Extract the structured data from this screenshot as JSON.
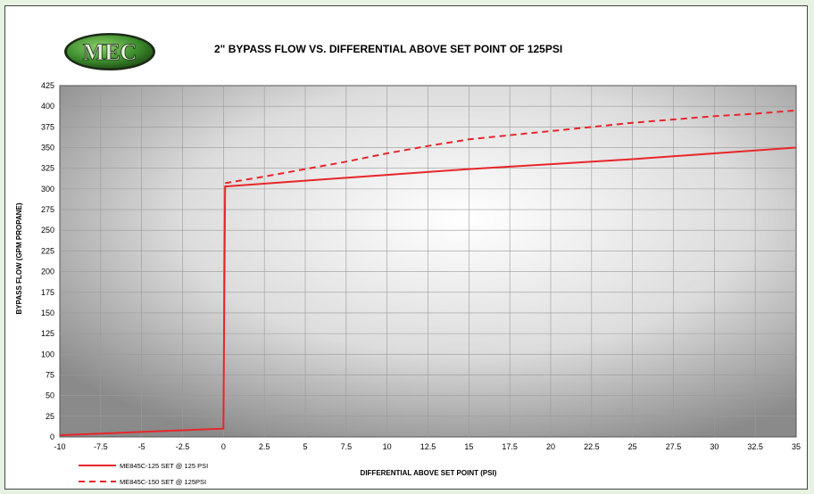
{
  "logo": {
    "text": "MEC"
  },
  "chart_data": {
    "type": "line",
    "title": "2\" BYPASS FLOW VS. DIFFERENTIAL ABOVE SET POINT OF 125PSI",
    "xlabel": "DIFFERENTIAL ABOVE SET POINT (PSI)",
    "ylabel": "BYPASS FLOW (GPM PROPANE)",
    "xlim": [
      -10,
      35
    ],
    "ylim": [
      0,
      425
    ],
    "x_ticks": [
      "-10",
      "-7.5",
      "-5",
      "-2.5",
      "0",
      "2.5",
      "5",
      "7.5",
      "10",
      "12.5",
      "15",
      "17.5",
      "20",
      "22.5",
      "25",
      "27.5",
      "30",
      "32.5",
      "35"
    ],
    "y_ticks": [
      "0",
      "25",
      "50",
      "75",
      "100",
      "125",
      "150",
      "175",
      "200",
      "225",
      "250",
      "275",
      "300",
      "325",
      "350",
      "375",
      "400",
      "425"
    ],
    "grid": true,
    "legend_position": "bottom-left",
    "series": [
      {
        "name": "ME845C-125 SET @ 125 PSI",
        "style": "solid",
        "color": "#e8262a",
        "points": [
          [
            -10,
            2
          ],
          [
            -0.1,
            10
          ],
          [
            0,
            10
          ],
          [
            0.1,
            303
          ],
          [
            5,
            310
          ],
          [
            10,
            317
          ],
          [
            15,
            324
          ],
          [
            20,
            330
          ],
          [
            25,
            336
          ],
          [
            30,
            343
          ],
          [
            35,
            350
          ]
        ]
      },
      {
        "name": "ME845C-150 SET @ 125PSI",
        "style": "dashed",
        "color": "#e8262a",
        "points": [
          [
            0.1,
            307
          ],
          [
            2.5,
            315
          ],
          [
            5,
            324
          ],
          [
            7.5,
            333
          ],
          [
            10,
            343
          ],
          [
            12.5,
            352
          ],
          [
            15,
            360
          ],
          [
            17.5,
            365
          ],
          [
            20,
            370
          ],
          [
            22.5,
            375
          ],
          [
            25,
            380
          ],
          [
            27.5,
            384
          ],
          [
            30,
            388
          ],
          [
            32.5,
            391
          ],
          [
            35,
            395
          ]
        ]
      }
    ]
  }
}
